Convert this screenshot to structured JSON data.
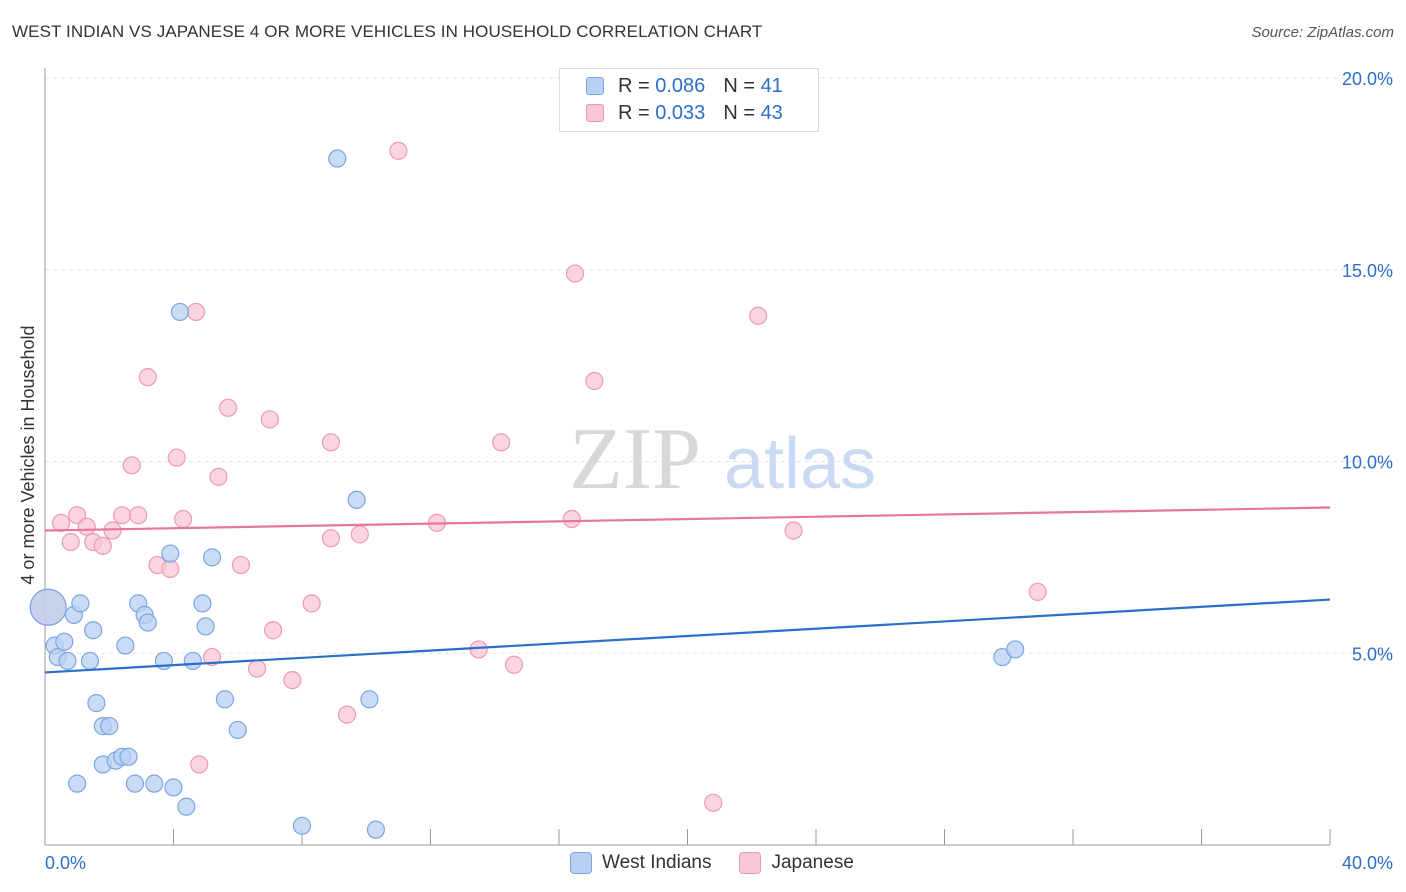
{
  "title": "WEST INDIAN VS JAPANESE 4 OR MORE VEHICLES IN HOUSEHOLD CORRELATION CHART",
  "source": "Source: ZipAtlas.com",
  "watermark": {
    "zip": "ZIP",
    "atlas": "atlas"
  },
  "colors": {
    "blue_fill": "#b8d0f2",
    "blue_stroke": "#7aa6e0",
    "blue_line": "#2a6fc9",
    "pink_fill": "#f8c7d6",
    "pink_stroke": "#ee9ab4",
    "pink_line": "#e8759a",
    "axis_text": "#2a6fc9",
    "grid": "#e3e3e3"
  },
  "legend": {
    "rows": [
      {
        "r_label": "R =",
        "r_value": "0.086",
        "n_label": "N =",
        "n_value": "41"
      },
      {
        "r_label": "R =",
        "r_value": "0.033",
        "n_label": "N =",
        "n_value": "43"
      }
    ]
  },
  "bottom_legend": [
    "West Indians",
    "Japanese"
  ],
  "chart_data": {
    "type": "scatter",
    "title": "WEST INDIAN VS JAPANESE 4 OR MORE VEHICLES IN HOUSEHOLD CORRELATION CHART",
    "xlabel": "",
    "ylabel": "4 or more Vehicles in Household",
    "xlim": [
      0,
      40
    ],
    "ylim": [
      0,
      20
    ],
    "x_tick_labels": [
      "0.0%",
      "40.0%"
    ],
    "y_ticks": [
      5,
      10,
      15,
      20
    ],
    "y_tick_labels": [
      "5.0%",
      "10.0%",
      "15.0%",
      "20.0%"
    ],
    "series": [
      {
        "name": "West Indians",
        "r": 0.086,
        "n": 41,
        "trend": {
          "x": [
            0,
            40
          ],
          "y": [
            4.5,
            6.4
          ]
        },
        "points": [
          {
            "x": 0.1,
            "y": 6.2,
            "big": true
          },
          {
            "x": 0.3,
            "y": 5.2
          },
          {
            "x": 0.4,
            "y": 4.9
          },
          {
            "x": 0.6,
            "y": 5.3
          },
          {
            "x": 0.7,
            "y": 4.8
          },
          {
            "x": 0.9,
            "y": 6.0
          },
          {
            "x": 1.1,
            "y": 6.3
          },
          {
            "x": 1.0,
            "y": 1.6
          },
          {
            "x": 1.4,
            "y": 4.8
          },
          {
            "x": 1.5,
            "y": 5.6
          },
          {
            "x": 1.6,
            "y": 3.7
          },
          {
            "x": 1.8,
            "y": 3.1
          },
          {
            "x": 2.0,
            "y": 3.1
          },
          {
            "x": 1.8,
            "y": 2.1
          },
          {
            "x": 2.2,
            "y": 2.2
          },
          {
            "x": 2.4,
            "y": 2.3
          },
          {
            "x": 2.5,
            "y": 5.2
          },
          {
            "x": 2.6,
            "y": 2.3
          },
          {
            "x": 2.8,
            "y": 1.6
          },
          {
            "x": 2.9,
            "y": 6.3
          },
          {
            "x": 3.1,
            "y": 6.0
          },
          {
            "x": 3.2,
            "y": 5.8
          },
          {
            "x": 3.4,
            "y": 1.6
          },
          {
            "x": 3.7,
            "y": 4.8
          },
          {
            "x": 3.9,
            "y": 7.6
          },
          {
            "x": 4.0,
            "y": 1.5
          },
          {
            "x": 4.4,
            "y": 1.0
          },
          {
            "x": 4.6,
            "y": 4.8
          },
          {
            "x": 4.2,
            "y": 13.9
          },
          {
            "x": 4.9,
            "y": 6.3
          },
          {
            "x": 5.0,
            "y": 5.7
          },
          {
            "x": 5.2,
            "y": 7.5
          },
          {
            "x": 5.6,
            "y": 3.8
          },
          {
            "x": 6.0,
            "y": 3.0
          },
          {
            "x": 8.0,
            "y": 0.5
          },
          {
            "x": 9.1,
            "y": 17.9
          },
          {
            "x": 9.7,
            "y": 9.0
          },
          {
            "x": 10.1,
            "y": 3.8
          },
          {
            "x": 10.3,
            "y": 0.4
          },
          {
            "x": 29.8,
            "y": 4.9
          },
          {
            "x": 30.2,
            "y": 5.1
          }
        ]
      },
      {
        "name": "Japanese",
        "r": 0.033,
        "n": 43,
        "trend": {
          "x": [
            0,
            40
          ],
          "y": [
            8.2,
            8.8
          ]
        },
        "points": [
          {
            "x": 0.1,
            "y": 6.2,
            "big": true
          },
          {
            "x": 0.5,
            "y": 8.4
          },
          {
            "x": 0.8,
            "y": 7.9
          },
          {
            "x": 1.0,
            "y": 8.6
          },
          {
            "x": 1.3,
            "y": 8.3
          },
          {
            "x": 1.5,
            "y": 7.9
          },
          {
            "x": 1.8,
            "y": 7.8
          },
          {
            "x": 2.1,
            "y": 8.2
          },
          {
            "x": 2.4,
            "y": 8.6
          },
          {
            "x": 2.7,
            "y": 9.9
          },
          {
            "x": 2.9,
            "y": 8.6
          },
          {
            "x": 3.2,
            "y": 12.2
          },
          {
            "x": 3.5,
            "y": 7.3
          },
          {
            "x": 3.9,
            "y": 7.2
          },
          {
            "x": 4.1,
            "y": 10.1
          },
          {
            "x": 4.3,
            "y": 8.5
          },
          {
            "x": 4.7,
            "y": 13.9
          },
          {
            "x": 4.8,
            "y": 2.1
          },
          {
            "x": 5.2,
            "y": 4.9
          },
          {
            "x": 5.4,
            "y": 9.6
          },
          {
            "x": 5.7,
            "y": 11.4
          },
          {
            "x": 6.1,
            "y": 7.3
          },
          {
            "x": 6.6,
            "y": 4.6
          },
          {
            "x": 7.1,
            "y": 5.6
          },
          {
            "x": 7.0,
            "y": 11.1
          },
          {
            "x": 7.7,
            "y": 4.3
          },
          {
            "x": 8.3,
            "y": 6.3
          },
          {
            "x": 8.9,
            "y": 10.5
          },
          {
            "x": 8.9,
            "y": 8.0
          },
          {
            "x": 9.4,
            "y": 3.4
          },
          {
            "x": 9.8,
            "y": 8.1
          },
          {
            "x": 11.0,
            "y": 18.1
          },
          {
            "x": 12.2,
            "y": 8.4
          },
          {
            "x": 13.5,
            "y": 5.1
          },
          {
            "x": 14.2,
            "y": 10.5
          },
          {
            "x": 14.6,
            "y": 4.7
          },
          {
            "x": 16.4,
            "y": 8.5
          },
          {
            "x": 16.5,
            "y": 14.9
          },
          {
            "x": 17.1,
            "y": 12.1
          },
          {
            "x": 20.8,
            "y": 1.1
          },
          {
            "x": 22.2,
            "y": 13.8
          },
          {
            "x": 23.3,
            "y": 8.2
          },
          {
            "x": 30.9,
            "y": 6.6
          }
        ]
      }
    ]
  }
}
